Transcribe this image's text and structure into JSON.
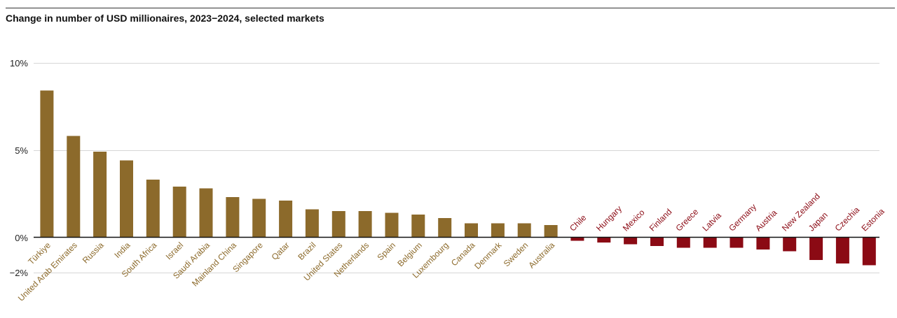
{
  "chart_data": {
    "type": "bar",
    "title": "Change in number of USD millionaires, 2023−2024, selected markets",
    "xlabel": "",
    "ylabel": "",
    "ylim": [
      -2,
      10
    ],
    "yticks": [
      -2,
      0,
      5,
      10
    ],
    "ytick_labels": [
      "−2%",
      "0%",
      "5%",
      "10%"
    ],
    "grid": true,
    "colors": {
      "positive": "#8C6A2B",
      "negative": "#8B0A14"
    },
    "categories": [
      "Türkiye",
      "United Arab Emirates",
      "Russia",
      "India",
      "South Africa",
      "Israel",
      "Saudi Arabia",
      "Mainland China",
      "Singapore",
      "Qatar",
      "Brazil",
      "United States",
      "Netherlands",
      "Spain",
      "Belgium",
      "Luxembourg",
      "Canada",
      "Denmark",
      "Sweden",
      "Australia",
      "Chile",
      "Hungary",
      "Mexico",
      "Finland",
      "Greece",
      "Latvia",
      "Germany",
      "Austria",
      "New Zealand",
      "Japan",
      "Czechia",
      "Estonia"
    ],
    "values": [
      8.4,
      5.8,
      4.9,
      4.4,
      3.3,
      2.9,
      2.8,
      2.3,
      2.2,
      2.1,
      1.6,
      1.5,
      1.5,
      1.4,
      1.3,
      1.1,
      0.8,
      0.8,
      0.8,
      0.7,
      -0.2,
      -0.3,
      -0.4,
      -0.5,
      -0.6,
      -0.6,
      -0.6,
      -0.7,
      -0.8,
      -1.3,
      -1.5,
      -1.6
    ]
  }
}
